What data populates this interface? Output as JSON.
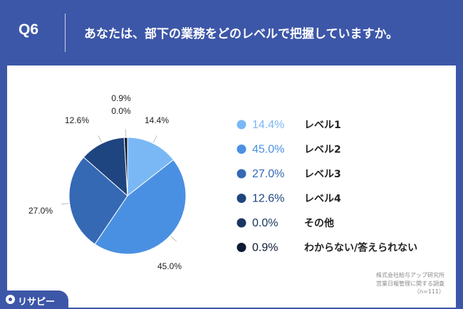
{
  "header": {
    "question_number": "Q6",
    "question_text": "あなたは、部下の業務をどのレベルで把握していますか。"
  },
  "chart_data": {
    "type": "pie",
    "categories": [
      "レベル1",
      "レベル2",
      "レベル3",
      "レベル4",
      "その他",
      "わからない/答えられない"
    ],
    "values": [
      14.4,
      45.0,
      27.0,
      12.6,
      0.0,
      0.9
    ],
    "value_labels": [
      "14.4%",
      "45.0%",
      "27.0%",
      "12.6%",
      "0.0%",
      "0.9%"
    ],
    "colors": [
      "#7ab8f5",
      "#4a90e2",
      "#3569b4",
      "#1f4580",
      "#1a3560",
      "#0c1a33"
    ],
    "legend_placement": "right",
    "start_angle": "12 o'clock",
    "direction": "clockwise"
  },
  "source": {
    "line1": "株式会社給与アップ研究所",
    "line2": "営業日報管理に関する調査",
    "line3": "（n=111）"
  },
  "logo": {
    "text": "リサピー"
  }
}
